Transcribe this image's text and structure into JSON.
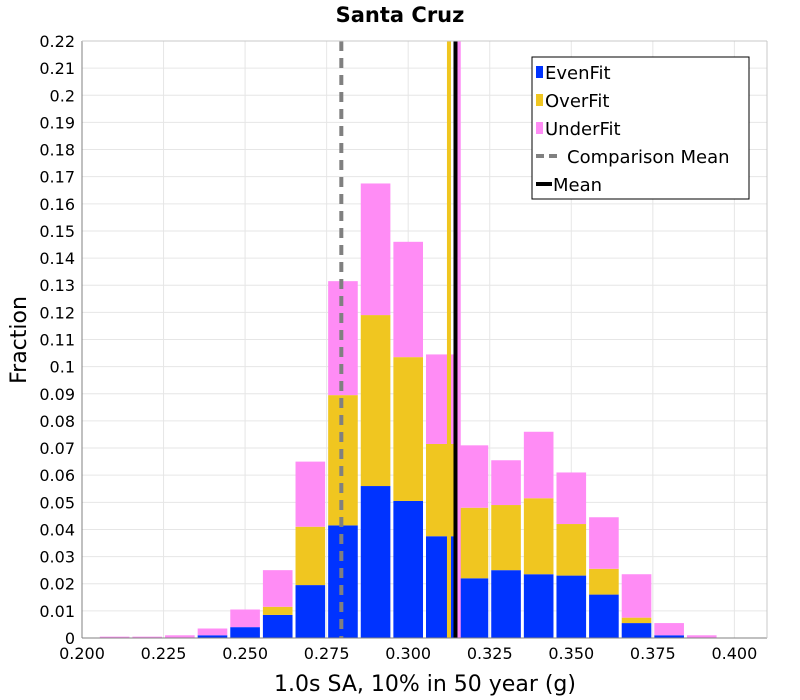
{
  "chart_data": {
    "type": "bar",
    "stacked": true,
    "title": "Santa Cruz",
    "xlabel": "1.0s SA, 10% in 50 year (g)",
    "ylabel": "Fraction",
    "xlim": [
      0.2,
      0.41
    ],
    "ylim": [
      0,
      0.22
    ],
    "bin_width": 0.01,
    "x_ticks": [
      "0.200",
      "0.225",
      "0.250",
      "0.275",
      "0.300",
      "0.325",
      "0.350",
      "0.375",
      "0.400"
    ],
    "y_ticks": [
      "0",
      "0.01",
      "0.02",
      "0.03",
      "0.04",
      "0.05",
      "0.06",
      "0.07",
      "0.08",
      "0.09",
      "0.1",
      "0.11",
      "0.12",
      "0.13",
      "0.14",
      "0.15",
      "0.16",
      "0.17",
      "0.18",
      "0.19",
      "0.2",
      "0.21",
      "0.22"
    ],
    "grid": true,
    "legend_position": "top-right",
    "x": [
      0.21,
      0.22,
      0.23,
      0.24,
      0.25,
      0.26,
      0.27,
      0.28,
      0.29,
      0.3,
      0.31,
      0.32,
      0.33,
      0.34,
      0.35,
      0.36,
      0.37,
      0.38,
      0.39,
      0.4
    ],
    "series": [
      {
        "name": "EvenFit",
        "color": "#0033ff",
        "values": [
          0.0,
          0.0,
          0.0,
          0.001,
          0.004,
          0.0085,
          0.0195,
          0.0415,
          0.056,
          0.0505,
          0.0375,
          0.022,
          0.025,
          0.0235,
          0.023,
          0.016,
          0.0055,
          0.001,
          0.0,
          0.0
        ]
      },
      {
        "name": "OverFit",
        "color": "#f0c620",
        "values": [
          0.0,
          0.0,
          0.0,
          0.0,
          0.0,
          0.003,
          0.0215,
          0.048,
          0.063,
          0.053,
          0.034,
          0.026,
          0.024,
          0.028,
          0.019,
          0.0095,
          0.002,
          0.0,
          0.0,
          0.0
        ]
      },
      {
        "name": "UnderFit",
        "color": "#ff8cf5",
        "values": [
          0.0005,
          0.0005,
          0.001,
          0.0025,
          0.0065,
          0.0135,
          0.024,
          0.042,
          0.0485,
          0.0425,
          0.033,
          0.023,
          0.0165,
          0.0245,
          0.019,
          0.019,
          0.016,
          0.0045,
          0.001,
          0.0
        ]
      }
    ],
    "vertical_lines": [
      {
        "name": "Comparison Mean",
        "x": 0.2795,
        "color": "#808080",
        "style": "dashed"
      },
      {
        "name": "Mean",
        "x": 0.3145,
        "color": "#000000",
        "style": "solid"
      }
    ],
    "series_mean_lines": [
      {
        "series": "OverFit",
        "x": 0.3125,
        "color": "#f0c620"
      },
      {
        "series": "UnderFit",
        "x": 0.3155,
        "color": "#ff8cf5"
      }
    ],
    "legend": [
      {
        "label": "EvenFit",
        "kind": "swatch",
        "color": "#0033ff"
      },
      {
        "label": "OverFit",
        "kind": "swatch",
        "color": "#f0c620"
      },
      {
        "label": "UnderFit",
        "kind": "swatch",
        "color": "#ff8cf5"
      },
      {
        "label": "Comparison Mean",
        "kind": "dashed-line",
        "color": "#808080"
      },
      {
        "label": "Mean",
        "kind": "solid-line",
        "color": "#000000"
      }
    ]
  }
}
